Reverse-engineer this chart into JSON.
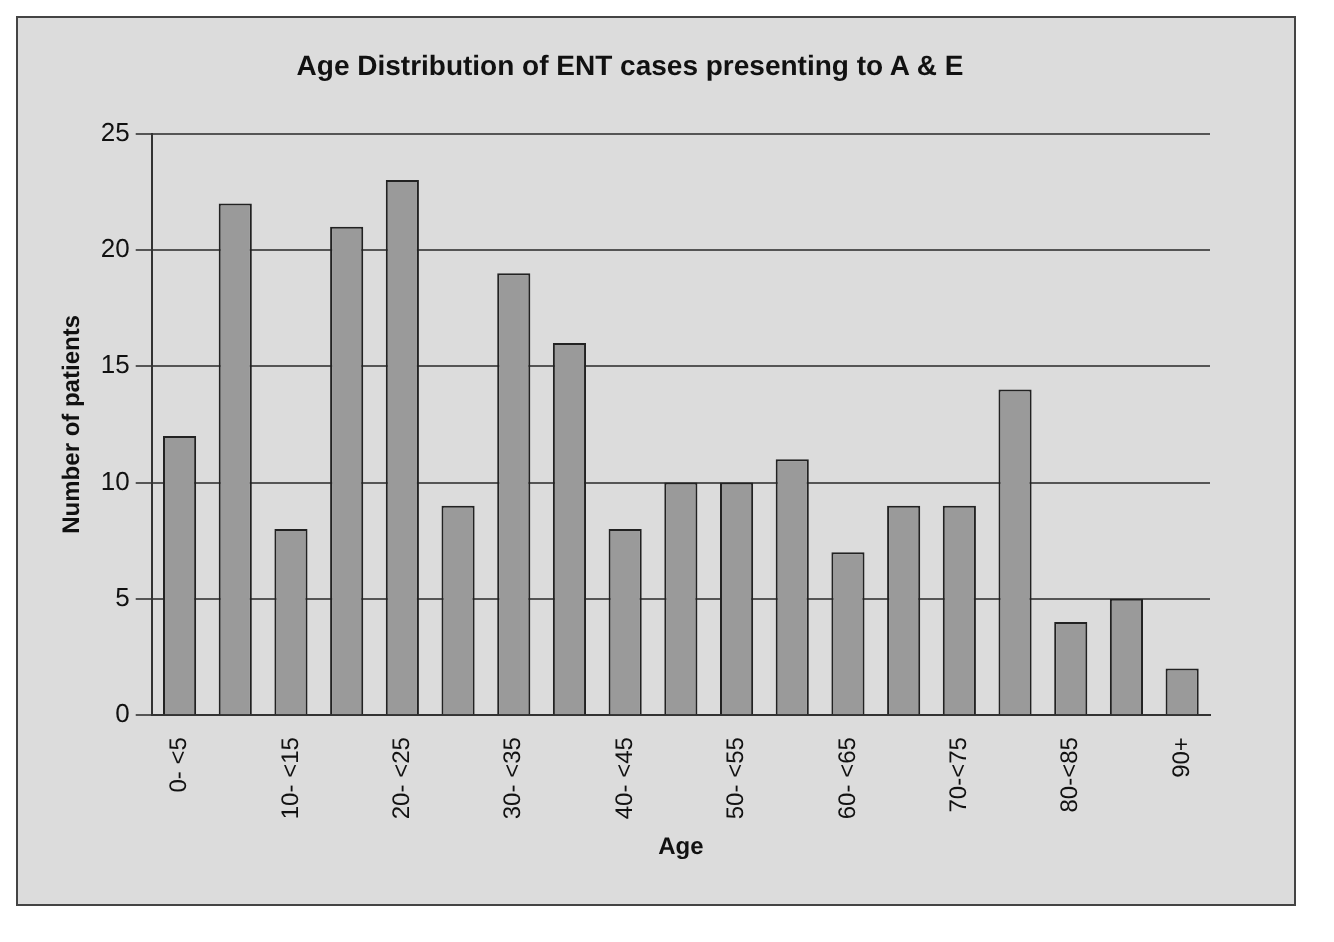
{
  "chart_data": {
    "type": "bar",
    "title": "Age Distribution of ENT cases presenting to A & E",
    "xlabel": "Age",
    "ylabel": "Number of patients",
    "categories": [
      "0- <5",
      null,
      "10- <15",
      null,
      "20- <25",
      null,
      "30- <35",
      null,
      "40- <45",
      null,
      "50- <55",
      null,
      "60- <65",
      null,
      "70-<75",
      null,
      "80-<85",
      null,
      "90+"
    ],
    "values": [
      12,
      22,
      8,
      21,
      23,
      9,
      19,
      16,
      8,
      10,
      10,
      11,
      7,
      9,
      9,
      14,
      4,
      5,
      2
    ],
    "color": "#9a9a9a",
    "ylim": [
      0,
      25
    ],
    "yticks": [
      0,
      5,
      10,
      15,
      20,
      25
    ],
    "grid": "y",
    "legend": false
  }
}
